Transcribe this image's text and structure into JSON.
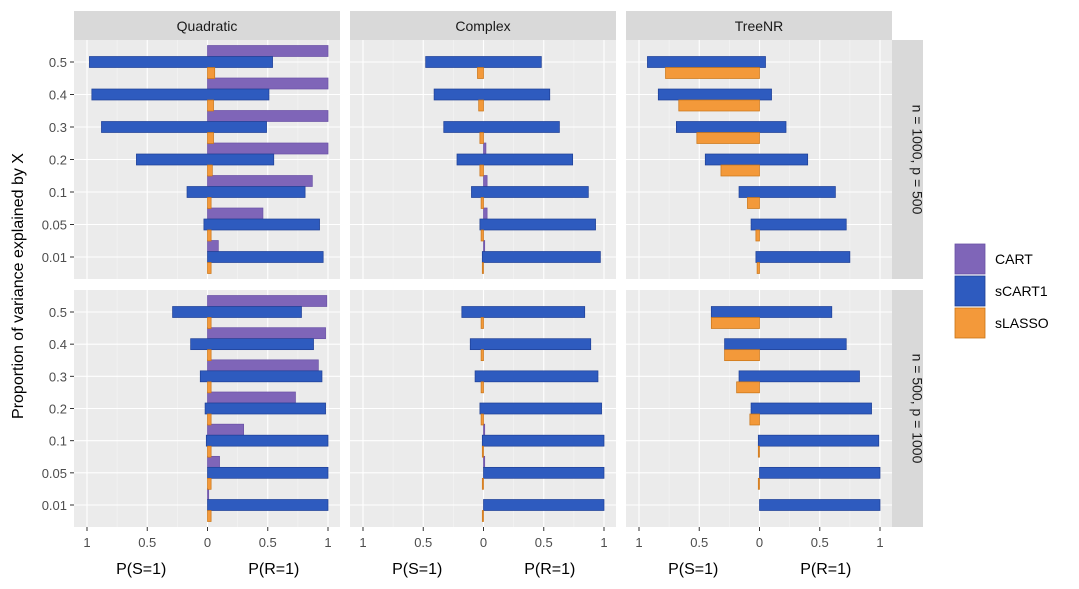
{
  "chart_data": {
    "type": "bar",
    "orientation": "horizontal",
    "ylabel": "Proportion of variance explained by X",
    "xlabel_left": "P(S=1)",
    "xlabel_right": "P(R=1)",
    "x_ticks": [
      "1",
      "0.5",
      "0",
      "0.5",
      "1"
    ],
    "categories": [
      "0.01",
      "0.05",
      "0.1",
      "0.2",
      "0.3",
      "0.4",
      "0.5"
    ],
    "columns": [
      "Quadratic",
      "Complex",
      "TreeNR"
    ],
    "rows": [
      "n = 1000, p = 500",
      "n = 500, p = 1000"
    ],
    "legend": {
      "position": "right",
      "items": [
        {
          "name": "CART",
          "color": "#7f65b8"
        },
        {
          "name": "sCART1",
          "color": "#2e5bbf"
        },
        {
          "name": "sLASSO",
          "color": "#f3993a"
        }
      ]
    },
    "panels": [
      {
        "column": "Quadratic",
        "row": "n = 1000, p = 500",
        "CART": {
          "S": [
            0,
            0,
            0,
            0,
            0,
            0,
            0
          ],
          "R": [
            0.09,
            0.46,
            0.87,
            1.0,
            1.0,
            1.0,
            1.0
          ]
        },
        "sCART1": {
          "S": [
            0.0,
            0.03,
            0.17,
            0.59,
            0.88,
            0.96,
            0.98
          ],
          "R": [
            0.96,
            0.93,
            0.81,
            0.55,
            0.49,
            0.51,
            0.54
          ]
        },
        "sLASSO": {
          "S": [
            0,
            0,
            0,
            0,
            0,
            0,
            0
          ],
          "R": [
            0.03,
            0.03,
            0.03,
            0.04,
            0.05,
            0.05,
            0.06
          ]
        }
      },
      {
        "column": "Complex",
        "row": "n = 1000, p = 500",
        "CART": {
          "S": [
            0,
            0,
            0,
            0,
            0,
            0,
            0
          ],
          "R": [
            0.01,
            0.03,
            0.03,
            0.02,
            0.0,
            0.0,
            0.0
          ]
        },
        "sCART1": {
          "S": [
            0.01,
            0.03,
            0.1,
            0.22,
            0.33,
            0.41,
            0.48
          ],
          "R": [
            0.97,
            0.93,
            0.87,
            0.74,
            0.63,
            0.55,
            0.48
          ]
        },
        "sLASSO": {
          "S": [
            0.01,
            0.02,
            0.02,
            0.03,
            0.03,
            0.04,
            0.05
          ],
          "R": [
            0,
            0,
            0,
            0,
            0,
            0,
            0
          ]
        }
      },
      {
        "column": "TreeNR",
        "row": "n = 1000, p = 500",
        "CART": {
          "S": [
            0.0,
            0.0,
            0.0,
            0.0,
            0.0,
            0.0,
            0.0
          ],
          "R": [
            0,
            0,
            0,
            0,
            0,
            0,
            0
          ]
        },
        "sCART1": {
          "S": [
            0.03,
            0.07,
            0.17,
            0.45,
            0.69,
            0.84,
            0.93
          ],
          "R": [
            0.75,
            0.72,
            0.63,
            0.4,
            0.22,
            0.1,
            0.05
          ]
        },
        "sLASSO": {
          "S": [
            0.02,
            0.03,
            0.1,
            0.32,
            0.52,
            0.67,
            0.78
          ],
          "R": [
            0,
            0,
            0,
            0,
            0,
            0,
            0
          ]
        }
      },
      {
        "column": "Quadratic",
        "row": "n = 500, p = 1000",
        "CART": {
          "S": [
            0,
            0,
            0,
            0,
            0,
            0,
            0
          ],
          "R": [
            0.01,
            0.1,
            0.3,
            0.73,
            0.92,
            0.98,
            0.99
          ]
        },
        "sCART1": {
          "S": [
            0.0,
            0.0,
            0.01,
            0.02,
            0.06,
            0.14,
            0.29
          ],
          "R": [
            1.0,
            1.0,
            1.0,
            0.98,
            0.95,
            0.88,
            0.78
          ]
        },
        "sLASSO": {
          "S": [
            0,
            0,
            0,
            0,
            0,
            0,
            0
          ],
          "R": [
            0.03,
            0.03,
            0.03,
            0.03,
            0.03,
            0.03,
            0.03
          ]
        }
      },
      {
        "column": "Complex",
        "row": "n = 500, p = 1000",
        "CART": {
          "S": [
            0,
            0,
            0,
            0,
            0,
            0,
            0
          ],
          "R": [
            0.0,
            0.01,
            0.01,
            0.0,
            0.0,
            0.0,
            0.0
          ]
        },
        "sCART1": {
          "S": [
            0.0,
            0.0,
            0.01,
            0.03,
            0.07,
            0.11,
            0.18
          ],
          "R": [
            1.0,
            1.0,
            1.0,
            0.98,
            0.95,
            0.89,
            0.84
          ]
        },
        "sLASSO": {
          "S": [
            0.01,
            0.01,
            0.01,
            0.02,
            0.02,
            0.02,
            0.02
          ],
          "R": [
            0,
            0,
            0,
            0,
            0,
            0,
            0
          ]
        }
      },
      {
        "column": "TreeNR",
        "row": "n = 500, p = 1000",
        "CART": {
          "S": [
            0,
            0,
            0,
            0,
            0,
            0,
            0
          ],
          "R": [
            0,
            0,
            0,
            0,
            0,
            0,
            0
          ]
        },
        "sCART1": {
          "S": [
            0.0,
            0.0,
            0.01,
            0.07,
            0.17,
            0.29,
            0.4
          ],
          "R": [
            1.0,
            1.0,
            0.99,
            0.93,
            0.83,
            0.72,
            0.6
          ]
        },
        "sLASSO": {
          "S": [
            0.0,
            0.01,
            0.01,
            0.08,
            0.19,
            0.29,
            0.4
          ],
          "R": [
            0,
            0,
            0,
            0,
            0,
            0,
            0
          ]
        }
      }
    ]
  }
}
